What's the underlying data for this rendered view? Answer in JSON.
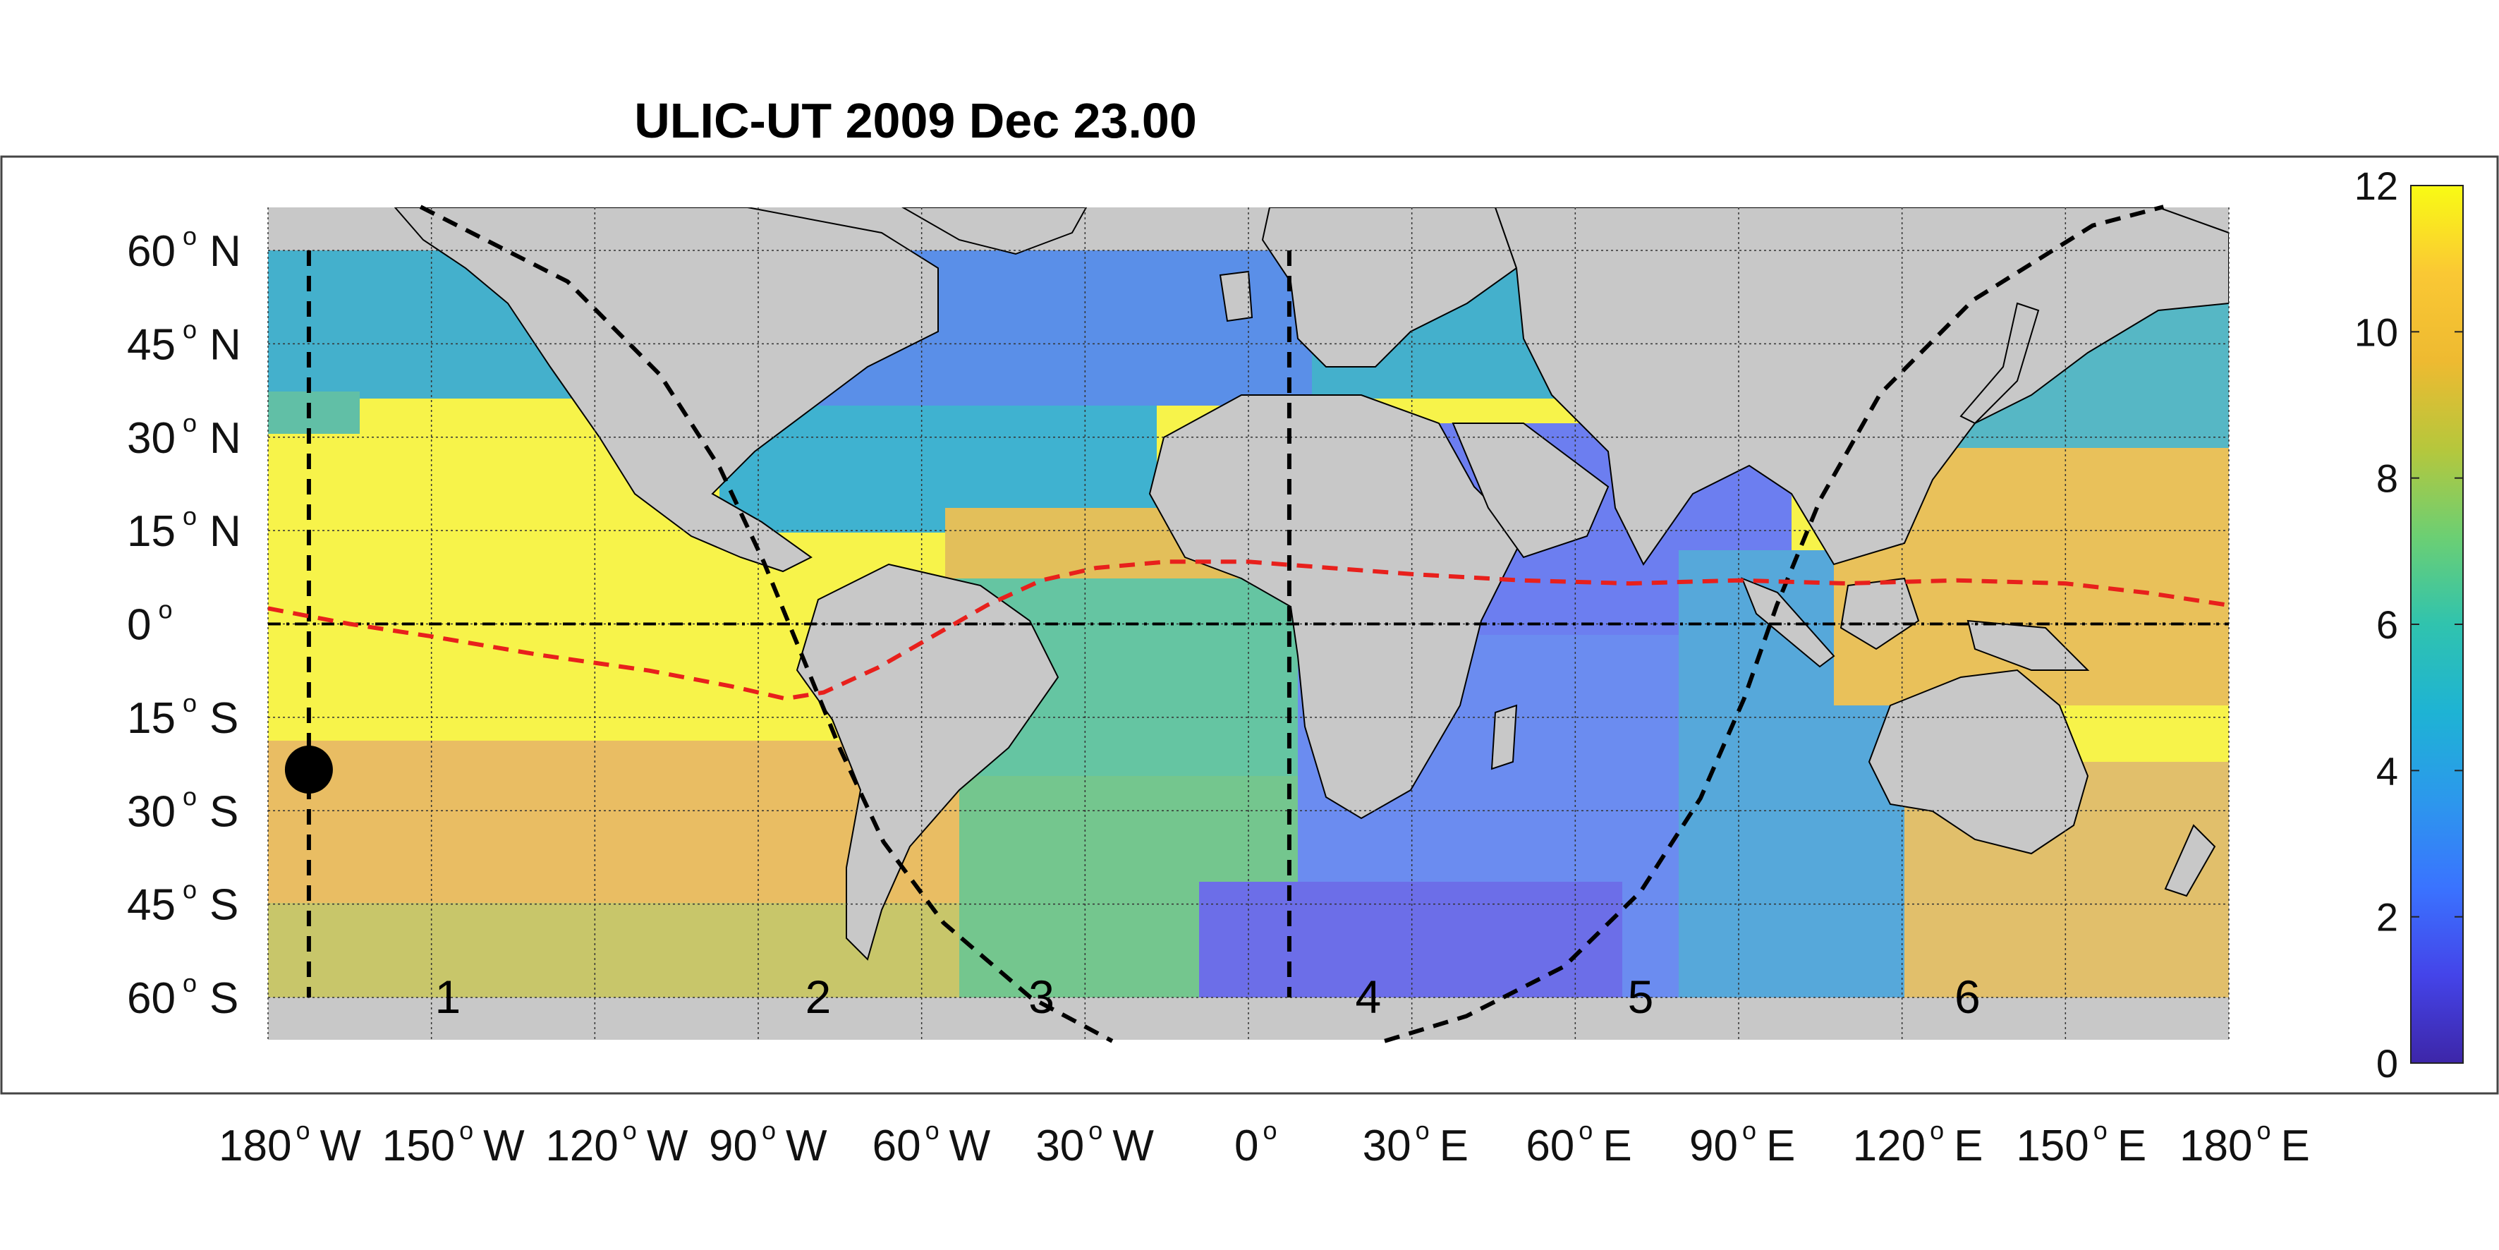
{
  "title": "ULIC-UT 2009 Dec 23.00",
  "map": {
    "lat_labels": [
      {
        "lat": 60,
        "deg": "60",
        "hemi": "N"
      },
      {
        "lat": 45,
        "deg": "45",
        "hemi": "N"
      },
      {
        "lat": 30,
        "deg": "30",
        "hemi": "N"
      },
      {
        "lat": 15,
        "deg": "15",
        "hemi": "N"
      },
      {
        "lat": 0,
        "deg": "0",
        "hemi": ""
      },
      {
        "lat": -15,
        "deg": "15",
        "hemi": "S"
      },
      {
        "lat": -30,
        "deg": "30",
        "hemi": "S"
      },
      {
        "lat": -45,
        "deg": "45",
        "hemi": "S"
      },
      {
        "lat": -60,
        "deg": "60",
        "hemi": "S"
      }
    ],
    "lon_labels": [
      {
        "lon": -180,
        "deg": "180",
        "hemi": "W"
      },
      {
        "lon": -150,
        "deg": "150",
        "hemi": "W"
      },
      {
        "lon": -120,
        "deg": "120",
        "hemi": "W"
      },
      {
        "lon": -90,
        "deg": "90",
        "hemi": "W"
      },
      {
        "lon": -60,
        "deg": "60",
        "hemi": "W"
      },
      {
        "lon": -30,
        "deg": "30",
        "hemi": "W"
      },
      {
        "lon": 0,
        "deg": "0",
        "hemi": ""
      },
      {
        "lon": 30,
        "deg": "30",
        "hemi": "E"
      },
      {
        "lon": 60,
        "deg": "60",
        "hemi": "E"
      },
      {
        "lon": 90,
        "deg": "90",
        "hemi": "E"
      },
      {
        "lon": 120,
        "deg": "120",
        "hemi": "E"
      },
      {
        "lon": 150,
        "deg": "150",
        "hemi": "E"
      },
      {
        "lon": 180,
        "deg": "180",
        "hemi": "E"
      }
    ],
    "region_labels": [
      {
        "text": "1",
        "lon": -147,
        "lat": -60
      },
      {
        "text": "2",
        "lon": -79,
        "lat": -60
      },
      {
        "text": "3",
        "lon": -38,
        "lat": -60
      },
      {
        "text": "4",
        "lon": 22,
        "lat": -60
      },
      {
        "text": "5",
        "lon": 72,
        "lat": -60
      },
      {
        "text": "6",
        "lon": 132,
        "lat": -60
      }
    ],
    "subsolar_marker": {
      "lon": -172.5,
      "lat": -23.4
    },
    "meridians_dashed": [
      -172.5,
      7.5
    ],
    "equator_line": 0,
    "terminator_dawn": [
      [
        -152,
        67
      ],
      [
        -125,
        55
      ],
      [
        -108,
        40
      ],
      [
        -97,
        25
      ],
      [
        -89,
        10
      ],
      [
        -82,
        -5
      ],
      [
        -75,
        -20
      ],
      [
        -67,
        -35
      ],
      [
        -56,
        -48
      ],
      [
        -40,
        -60
      ],
      [
        -25,
        -67
      ]
    ],
    "terminator_dusk": [
      [
        25,
        -67
      ],
      [
        40,
        -63
      ],
      [
        58,
        -55
      ],
      [
        72,
        -43
      ],
      [
        83,
        -28
      ],
      [
        91,
        -12
      ],
      [
        97,
        3
      ],
      [
        105,
        20
      ],
      [
        116,
        37
      ],
      [
        133,
        52
      ],
      [
        155,
        64
      ],
      [
        168,
        67
      ]
    ],
    "itcz_line": [
      [
        -180,
        2.5
      ],
      [
        -165,
        0
      ],
      [
        -150,
        -2
      ],
      [
        -130,
        -5
      ],
      [
        -110,
        -7.5
      ],
      [
        -95,
        -10
      ],
      [
        -85,
        -12
      ],
      [
        -78,
        -11
      ],
      [
        -68,
        -7
      ],
      [
        -58,
        -2
      ],
      [
        -48,
        3
      ],
      [
        -38,
        7
      ],
      [
        -28,
        9
      ],
      [
        -15,
        10
      ],
      [
        0,
        10
      ],
      [
        15,
        9
      ],
      [
        30,
        8
      ],
      [
        50,
        7
      ],
      [
        70,
        6.5
      ],
      [
        90,
        7
      ],
      [
        110,
        6.5
      ],
      [
        130,
        7
      ],
      [
        150,
        6.5
      ],
      [
        165,
        5
      ],
      [
        180,
        3
      ]
    ],
    "colors": {
      "land": "#c8c8c8",
      "grid": "#333333",
      "terminator": "#000000",
      "itcz": "#e8201c",
      "marker": "#000000"
    }
  },
  "colorbar": {
    "min": 0,
    "max": 12,
    "ticks": [
      "0",
      "2",
      "4",
      "6",
      "8",
      "10",
      "12"
    ],
    "colormap": [
      "#3d26a8",
      "#4444e9",
      "#3a73ff",
      "#2c98ec",
      "#1eb3d4",
      "#30c3ae",
      "#6ccf73",
      "#b6c73c",
      "#eeba31",
      "#fac834",
      "#f9fb14"
    ]
  }
}
